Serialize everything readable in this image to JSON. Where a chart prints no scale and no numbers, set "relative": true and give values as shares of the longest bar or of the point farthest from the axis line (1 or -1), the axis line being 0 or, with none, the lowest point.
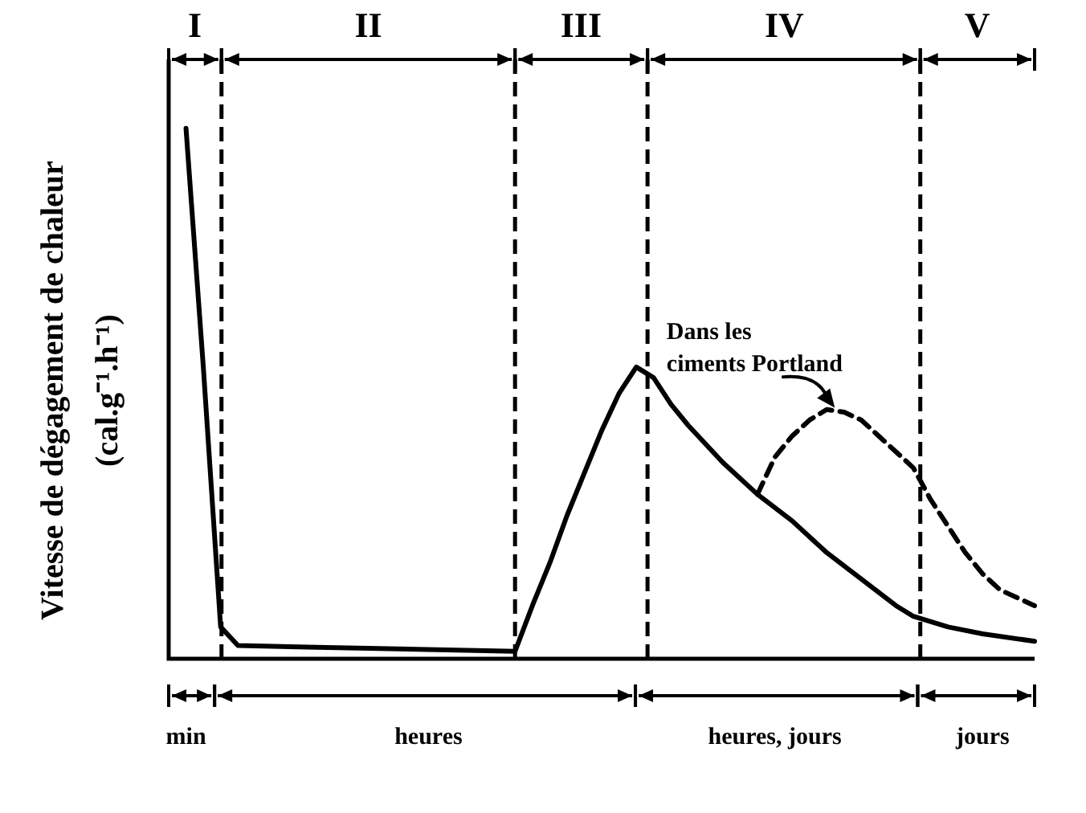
{
  "chart_data": {
    "type": "line",
    "relative": true,
    "tick_labels": "x",
    "ylabel": "Vitesse de dégagement de chaleur\n(cal.g⁻¹.h⁻¹)",
    "categories": [
      null,
      "min",
      null,
      null,
      null,
      null,
      null,
      null,
      null,
      null,
      null,
      null,
      null,
      null,
      null,
      "heures",
      null,
      null,
      null,
      null,
      null,
      null,
      null,
      null,
      null,
      null,
      null,
      null,
      null,
      null,
      null,
      null,
      null,
      null,
      null,
      "heures, jours",
      null,
      null,
      null,
      null,
      null,
      null,
      null,
      null,
      null,
      null,
      null,
      "jours",
      null,
      null,
      null
    ],
    "series": [
      {
        "color": "#000000",
        "line_style": "solid",
        "values": [
          null,
          1,
          0.55,
          0.06,
          0.025,
          null,
          null,
          null,
          0.022,
          null,
          null,
          null,
          null,
          null,
          null,
          null,
          null,
          null,
          null,
          null,
          0.014,
          0.1,
          0.18,
          0.27,
          0.35,
          0.43,
          0.5,
          0.55,
          0.53,
          0.48,
          0.44,
          null,
          0.37,
          null,
          0.31,
          null,
          0.26,
          null,
          0.2,
          null,
          0.15,
          null,
          0.1,
          0.08,
          null,
          0.06,
          null,
          0.047,
          null,
          null,
          0.033
        ]
      },
      {
        "color": "#000000",
        "line_style": "dashed",
        "values": [
          null,
          null,
          null,
          null,
          null,
          null,
          null,
          null,
          null,
          null,
          null,
          null,
          null,
          null,
          null,
          null,
          null,
          null,
          null,
          null,
          null,
          null,
          null,
          null,
          null,
          null,
          null,
          null,
          null,
          null,
          null,
          null,
          null,
          null,
          0.31,
          0.38,
          0.42,
          0.45,
          0.47,
          0.465,
          0.45,
          0.42,
          0.39,
          0.36,
          0.3,
          0.25,
          0.2,
          0.16,
          0.13,
          0.115,
          0.1
        ]
      }
    ],
    "annotations": [
      "I",
      "II",
      "III",
      "IV",
      "V",
      "Dans les\nciments Portland"
    ]
  }
}
